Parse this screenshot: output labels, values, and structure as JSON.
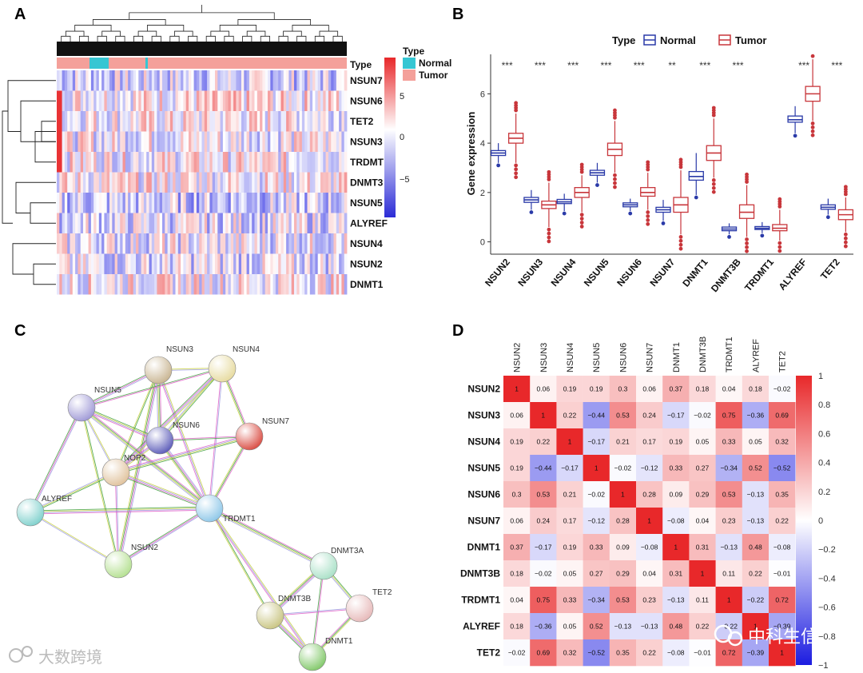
{
  "panels": {
    "A": "A",
    "B": "B",
    "C": "C",
    "D": "D"
  },
  "colors": {
    "red": "#e8282a",
    "blue": "#2b2bd6",
    "white": "#ffffff",
    "normal": "#36c6d3",
    "tumor": "#f4a09a",
    "normal_box": "#2a3aa8",
    "tumor_box": "#c8363b"
  },
  "heatmap": {
    "rows": [
      "NSUN7",
      "NSUN6",
      "TET2",
      "NSUN3",
      "TRDMT",
      "DNMT3",
      "NSUN5",
      "ALYREF",
      "NSUN4",
      "NSUN2",
      "DNMT1"
    ],
    "annotation_label": "Type",
    "legend_title": "Type",
    "legend_items": [
      "Normal",
      "Tumor"
    ],
    "colorbar_ticks": [
      "5",
      "0",
      "−5"
    ]
  },
  "chart_data": [
    {
      "type": "box",
      "panel": "B",
      "title": "",
      "legend_title": "Type",
      "legend": [
        "Normal",
        "Tumor"
      ],
      "ylabel": "Gene expression",
      "xlabel": "",
      "ylim": [
        -0.5,
        7.6
      ],
      "yticks": [
        0,
        2,
        4,
        6
      ],
      "categories": [
        "NSUN2",
        "NSUN3",
        "NSUN4",
        "NSUN5",
        "NSUN6",
        "NSUN7",
        "DNMT1",
        "DNMT3B",
        "TRDMT1",
        "ALYREF",
        "TET2"
      ],
      "significance": [
        "***",
        "***",
        "***",
        "***",
        "***",
        "**",
        "***",
        "***",
        "",
        "***",
        "***"
      ],
      "series": [
        {
          "name": "Normal",
          "q1": [
            3.5,
            1.6,
            1.55,
            2.7,
            1.42,
            1.2,
            2.5,
            0.45,
            0.5,
            4.85,
            1.32
          ],
          "median": [
            3.6,
            1.7,
            1.62,
            2.8,
            1.5,
            1.3,
            2.65,
            0.52,
            0.55,
            4.95,
            1.4
          ],
          "q3": [
            3.7,
            1.8,
            1.72,
            2.9,
            1.58,
            1.4,
            2.85,
            0.6,
            0.62,
            5.1,
            1.5
          ],
          "low": [
            3.2,
            1.3,
            1.25,
            2.4,
            1.25,
            0.85,
            1.9,
            0.3,
            0.35,
            4.4,
            1.1
          ],
          "high": [
            4.0,
            2.1,
            1.95,
            3.2,
            1.75,
            1.7,
            3.6,
            0.75,
            0.8,
            5.5,
            1.75
          ]
        },
        {
          "name": "Tumor",
          "q1": [
            4.0,
            1.35,
            1.8,
            3.5,
            1.85,
            1.2,
            3.3,
            0.95,
            0.45,
            5.7,
            0.9
          ],
          "median": [
            4.2,
            1.5,
            2.0,
            3.75,
            2.0,
            1.5,
            3.6,
            1.2,
            0.55,
            6.0,
            1.1
          ],
          "q3": [
            4.4,
            1.65,
            2.2,
            4.0,
            2.2,
            1.8,
            3.9,
            1.5,
            0.7,
            6.3,
            1.3
          ],
          "low": [
            3.2,
            0.6,
            1.2,
            2.8,
            1.3,
            0.3,
            2.6,
            0.2,
            0.05,
            4.9,
            0.4
          ],
          "high": [
            5.2,
            2.4,
            2.7,
            4.9,
            2.8,
            2.9,
            5.0,
            2.3,
            1.3,
            7.4,
            1.8
          ]
        }
      ]
    },
    {
      "type": "heatmap",
      "panel": "D",
      "labels": [
        "NSUN2",
        "NSUN3",
        "NSUN4",
        "NSUN5",
        "NSUN6",
        "NSUN7",
        "DNMT1",
        "DNMT3B",
        "TRDMT1",
        "ALYREF",
        "TET2"
      ],
      "matrix": [
        [
          1,
          0.06,
          0.19,
          0.19,
          0.3,
          0.06,
          0.37,
          0.18,
          0.04,
          0.18,
          -0.02
        ],
        [
          0.06,
          1,
          0.22,
          -0.44,
          0.53,
          0.24,
          -0.17,
          -0.02,
          0.75,
          -0.36,
          0.69
        ],
        [
          0.19,
          0.22,
          1,
          -0.17,
          0.21,
          0.17,
          0.19,
          0.05,
          0.33,
          0.05,
          0.32
        ],
        [
          0.19,
          -0.44,
          -0.17,
          1,
          -0.02,
          -0.12,
          0.33,
          0.27,
          -0.34,
          0.52,
          -0.52
        ],
        [
          0.3,
          0.53,
          0.21,
          -0.02,
          1,
          0.28,
          0.09,
          0.29,
          0.53,
          -0.13,
          0.35
        ],
        [
          0.06,
          0.24,
          0.17,
          -0.12,
          0.28,
          1,
          -0.08,
          0.04,
          0.23,
          -0.13,
          0.22
        ],
        [
          0.37,
          -0.17,
          0.19,
          0.33,
          0.09,
          -0.08,
          1,
          0.31,
          -0.13,
          0.48,
          -0.08
        ],
        [
          0.18,
          -0.02,
          0.05,
          0.27,
          0.29,
          0.04,
          0.31,
          1,
          0.11,
          0.22,
          -0.01
        ],
        [
          0.04,
          0.75,
          0.33,
          -0.34,
          0.53,
          0.23,
          -0.13,
          0.11,
          1,
          -0.22,
          0.72
        ],
        [
          0.18,
          -0.36,
          0.05,
          0.52,
          -0.13,
          -0.13,
          0.48,
          0.22,
          -0.22,
          1,
          -0.39
        ],
        [
          -0.02,
          0.69,
          0.32,
          -0.52,
          0.35,
          0.22,
          -0.08,
          -0.01,
          0.72,
          -0.39,
          1
        ]
      ],
      "colorbar_ticks": [
        "1",
        "0.8",
        "0.6",
        "0.4",
        "0.2",
        "0",
        "−0.2",
        "−0.4",
        "−0.6",
        "−0.8",
        "−1"
      ],
      "vrange": [
        -1,
        1
      ]
    }
  ],
  "network": {
    "nodes": [
      "NSUN3",
      "NSUN4",
      "NSUN5",
      "NSUN6",
      "NSUN7",
      "NOP2",
      "ALYREF",
      "TRDMT1",
      "NSUN2",
      "DNMT3A",
      "DNMT3B",
      "TET2",
      "DNMT1"
    ]
  },
  "watermarks": {
    "left": "大数跨境",
    "right": "中科生信"
  }
}
